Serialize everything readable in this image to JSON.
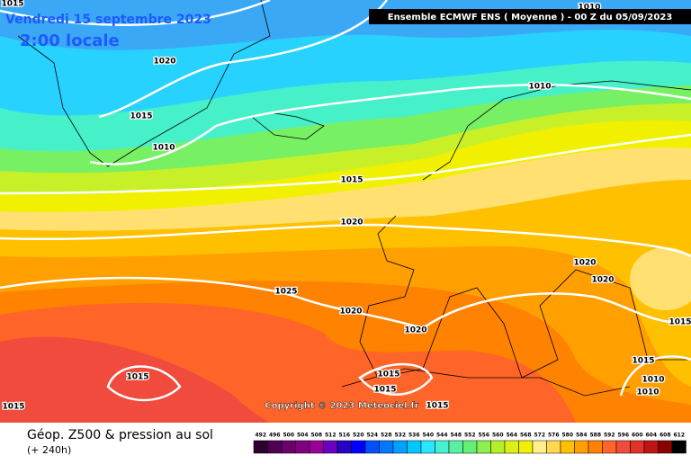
{
  "header": {
    "date": "Vendredi 15 septembre 2023",
    "time": "2:00 locale",
    "model": "Ensemble ECMWF ENS  ( Moyenne )  -  00 Z du 05/09/2023"
  },
  "copyright": "Copyright © 2023 Meteociel.fr",
  "footer": {
    "title": "Géop. Z500 & pression au sol",
    "lead": "(+ 240h)"
  },
  "isobar_labels": [
    "1015",
    "1020",
    "1015",
    "1010",
    "1010",
    "1010",
    "1015",
    "1020",
    "1020",
    "1020",
    "1025",
    "1020",
    "1020",
    "1015",
    "1015",
    "1015",
    "1015",
    "1015",
    "1015",
    "1010",
    "1010",
    "1015"
  ],
  "scale": {
    "values": [
      492,
      496,
      500,
      504,
      508,
      512,
      516,
      520,
      524,
      528,
      532,
      536,
      540,
      544,
      548,
      552,
      556,
      560,
      564,
      568,
      572,
      576,
      580,
      584,
      588,
      592,
      596,
      600,
      604,
      608,
      612
    ],
    "colors": [
      "#2d0030",
      "#500050",
      "#6a006a",
      "#800080",
      "#9a009a",
      "#6a00c0",
      "#2800c8",
      "#0000ff",
      "#0050ff",
      "#0078ff",
      "#00a0ff",
      "#00c8ff",
      "#28e6ff",
      "#46f0d2",
      "#5af0a0",
      "#64f078",
      "#8cf050",
      "#b4f028",
      "#dcf014",
      "#f0f000",
      "#fff08c",
      "#ffd850",
      "#ffc000",
      "#ffa000",
      "#ff8200",
      "#ff6428",
      "#f04b3c",
      "#e03228",
      "#c01414",
      "#8c0000",
      "#000000"
    ]
  }
}
